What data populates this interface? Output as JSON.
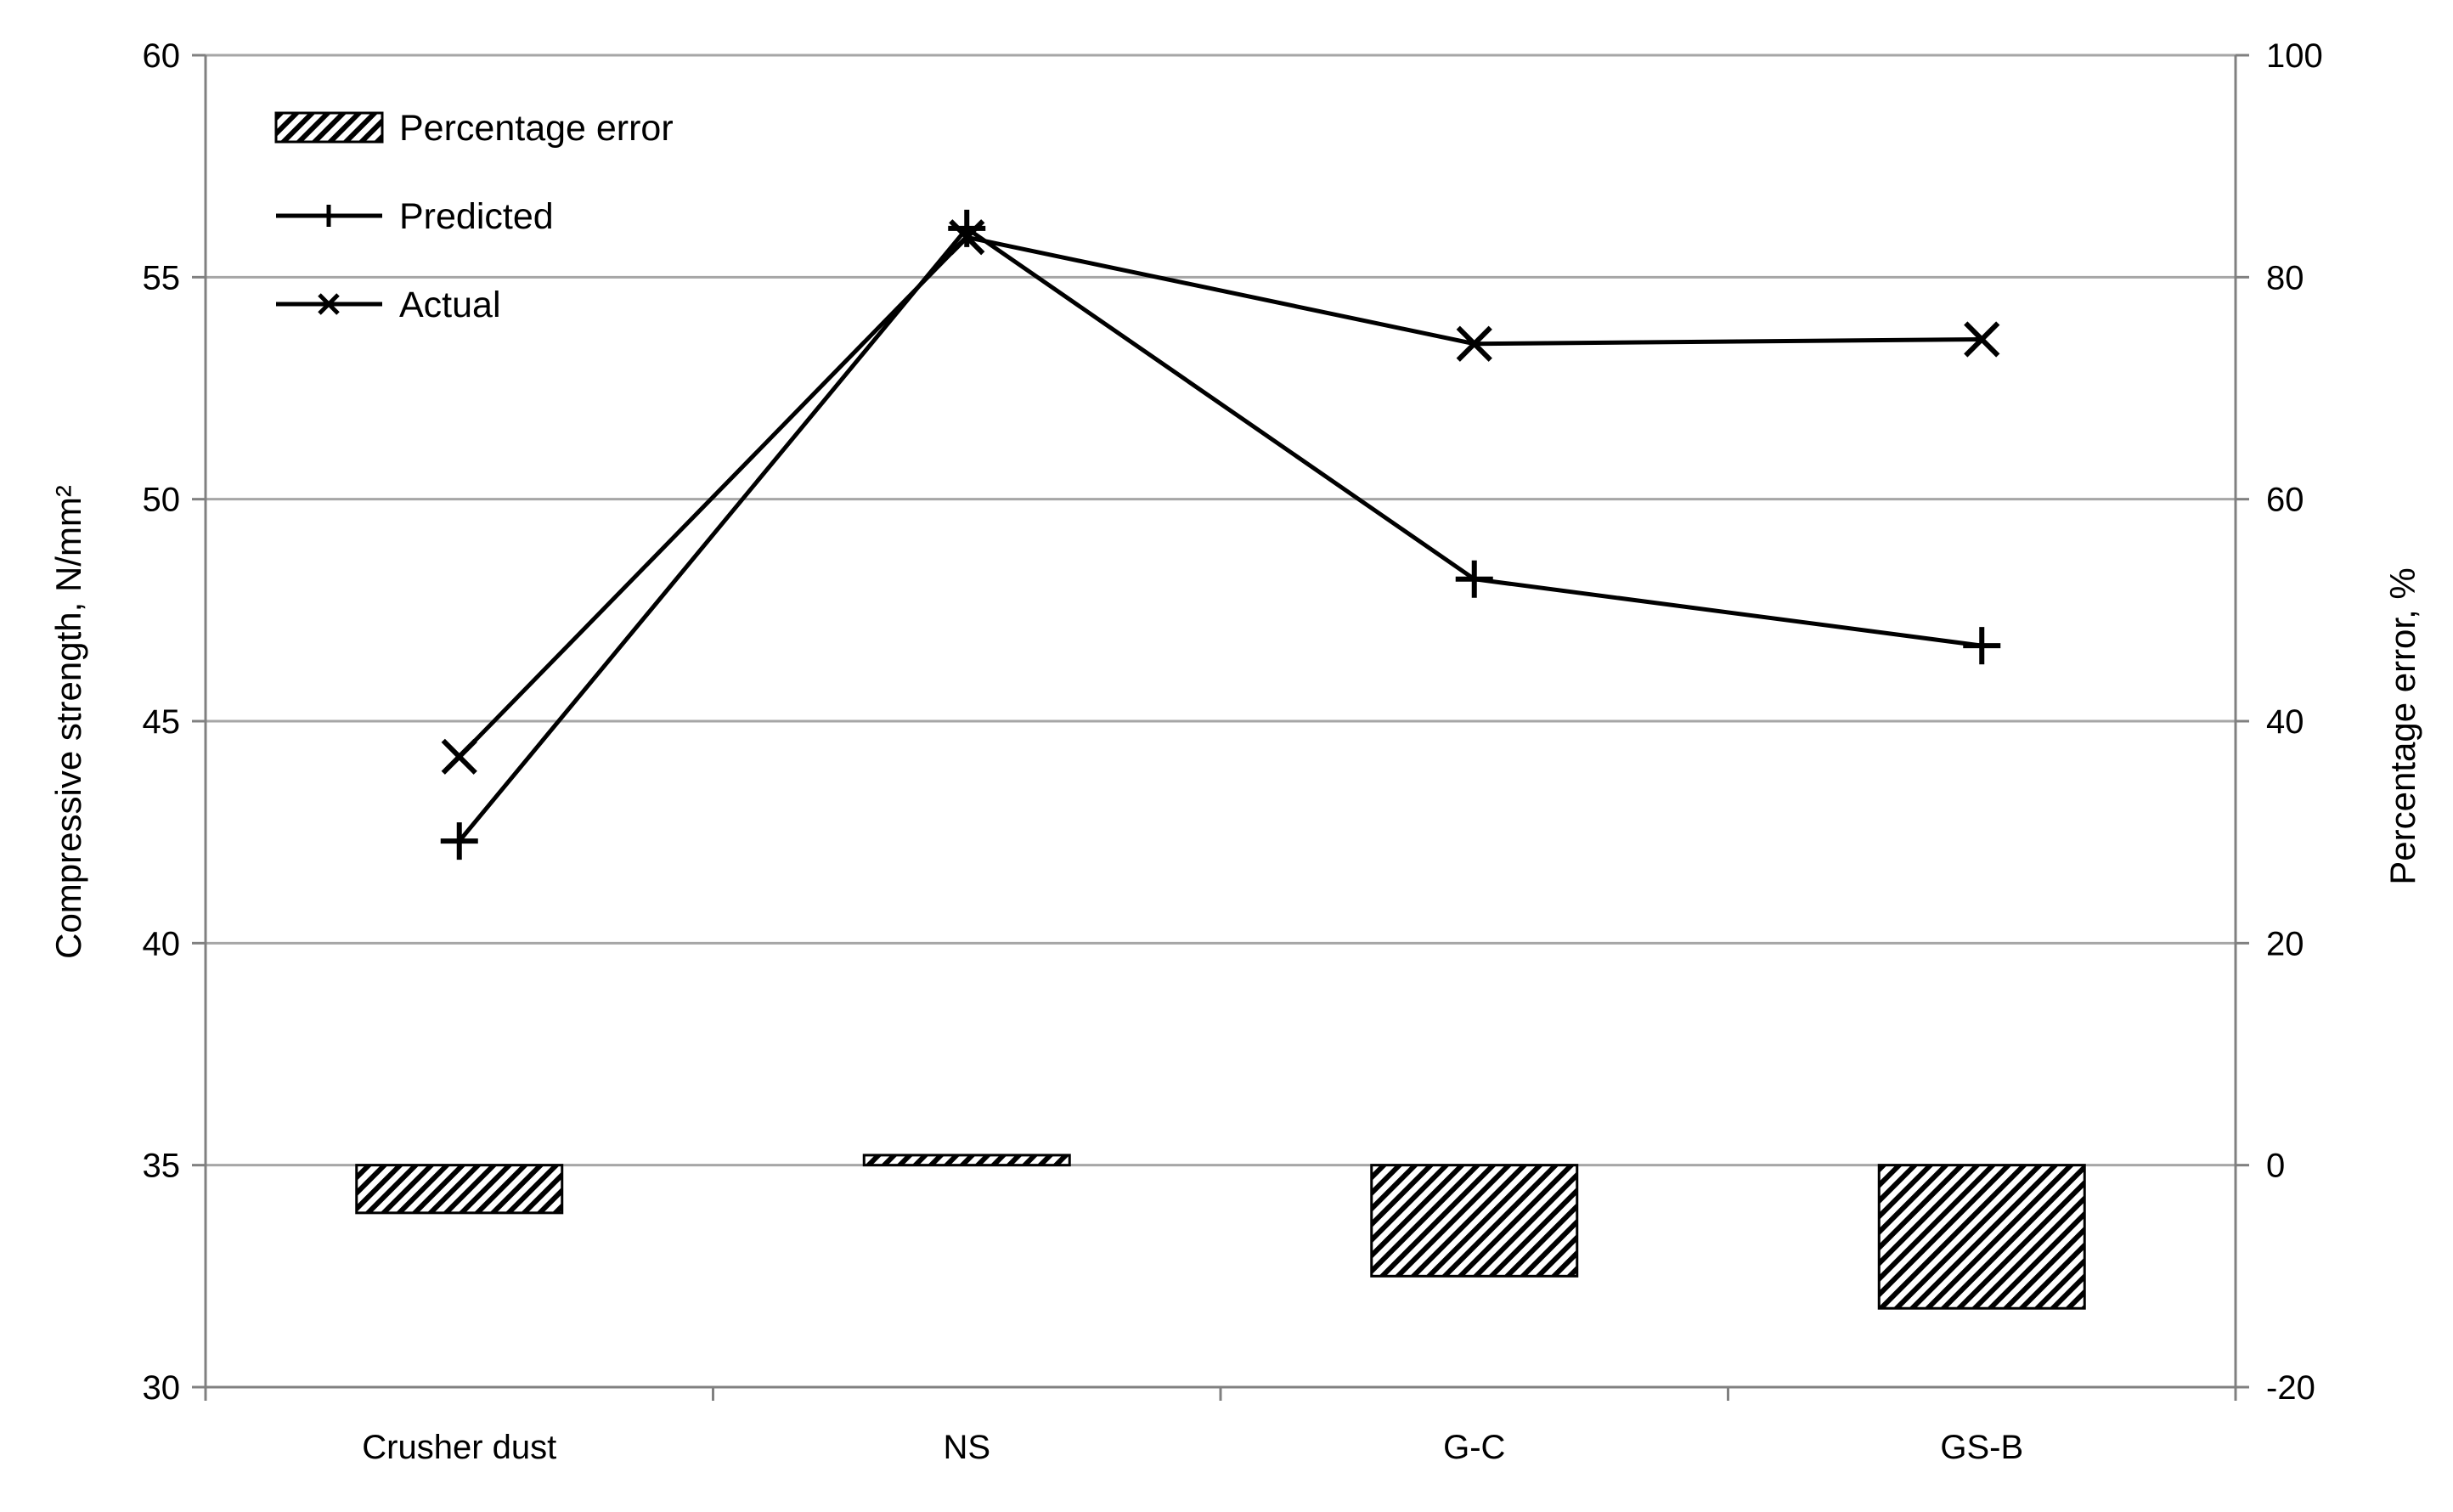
{
  "chart_data": {
    "type": "bar",
    "categories": [
      "Crusher dust",
      "NS",
      "G-C",
      "GS-B"
    ],
    "y_left": {
      "label": "Compressive strength, N/mm²",
      "lim": [
        30,
        60
      ],
      "ticks": [
        30,
        35,
        40,
        45,
        50,
        55,
        60
      ]
    },
    "y_right": {
      "label": "Percentage error, %",
      "lim": [
        -20,
        100
      ],
      "ticks": [
        -20,
        0,
        20,
        40,
        60,
        80,
        100
      ]
    },
    "grid": "horizontal major gridlines",
    "legend_position": "top-left",
    "series": [
      {
        "name": "Percentage error",
        "type": "bar",
        "axis": "right",
        "pattern": "diagonal-hatch",
        "values": [
          -4.3,
          0.9,
          -10.0,
          -12.9
        ]
      },
      {
        "name": "Predicted",
        "type": "line",
        "axis": "left",
        "marker": "plus",
        "values": [
          42.3,
          56.1,
          48.2,
          46.7
        ]
      },
      {
        "name": "Actual",
        "type": "line",
        "axis": "left",
        "marker": "x",
        "values": [
          44.2,
          55.9,
          53.5,
          53.6
        ]
      }
    ],
    "colors": {
      "line": "#000000",
      "grid": "#a6a6a6",
      "axis": "#808080",
      "bar_fill": "#000000",
      "bar_bg": "#ffffff"
    }
  }
}
